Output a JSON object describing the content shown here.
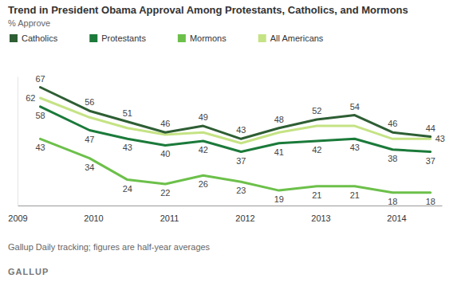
{
  "chart_data": {
    "type": "line",
    "title": "Trend in President Obama Approval Among Protestants, Catholics, and Mormons",
    "subtitle": "% Approve",
    "note": "Gallup Daily tracking; figures are half-year averages",
    "source": "GALLUP",
    "x": [
      2009.3,
      2009.95,
      2010.45,
      2010.95,
      2011.45,
      2011.95,
      2012.45,
      2012.95,
      2013.45,
      2013.95,
      2014.45
    ],
    "xlim": [
      2009,
      2014.6
    ],
    "xticks": [
      2009,
      2010,
      2011,
      2012,
      2013,
      2014
    ],
    "ylim": [
      12,
      72
    ],
    "yticks": [],
    "tick_labels": "x",
    "grid": false,
    "legend": "top",
    "data_labels": true,
    "series": [
      {
        "name": "Catholics",
        "color": "#2e5e34",
        "values": [
          67,
          56,
          51,
          46,
          49,
          43,
          48,
          52,
          54,
          46,
          44
        ]
      },
      {
        "name": "Protestants",
        "color": "#1b7a3a",
        "values": [
          58,
          47,
          43,
          40,
          42,
          37,
          41,
          42,
          43,
          38,
          37
        ]
      },
      {
        "name": "Mormons",
        "color": "#6cc04a",
        "values": [
          43,
          34,
          24,
          22,
          26,
          23,
          19,
          21,
          21,
          18,
          18
        ]
      },
      {
        "name": "All Americans",
        "color": "#c5e384",
        "values": [
          62,
          53,
          48,
          45,
          46,
          41,
          46,
          49,
          49,
          43,
          43
        ],
        "value_labels": [
          "62",
          null,
          null,
          null,
          null,
          null,
          null,
          null,
          null,
          null,
          "43"
        ]
      }
    ]
  }
}
